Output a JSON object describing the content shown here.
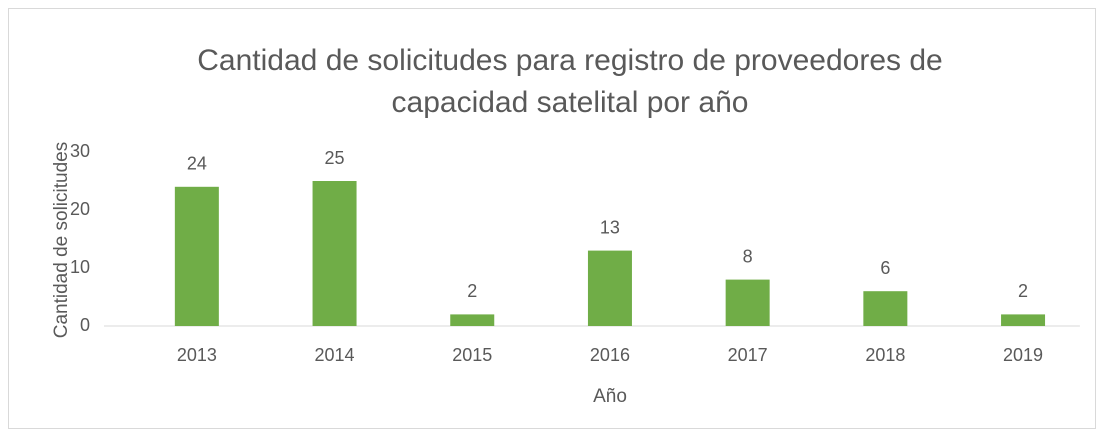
{
  "chart_data": {
    "type": "bar",
    "title": [
      "Cantidad de solicitudes para registro de proveedores de",
      "capacidad satelital por año"
    ],
    "x_label": "Año",
    "y_label": "Cantidad de solicitudes",
    "categories": [
      "2013",
      "2014",
      "2015",
      "2016",
      "2017",
      "2018",
      "2019"
    ],
    "values": [
      24,
      25,
      2,
      13,
      8,
      6,
      2
    ],
    "color": "#70ad47",
    "ylim": [
      0,
      30
    ],
    "yticks": [
      0,
      10,
      20,
      30
    ],
    "grid": false
  }
}
